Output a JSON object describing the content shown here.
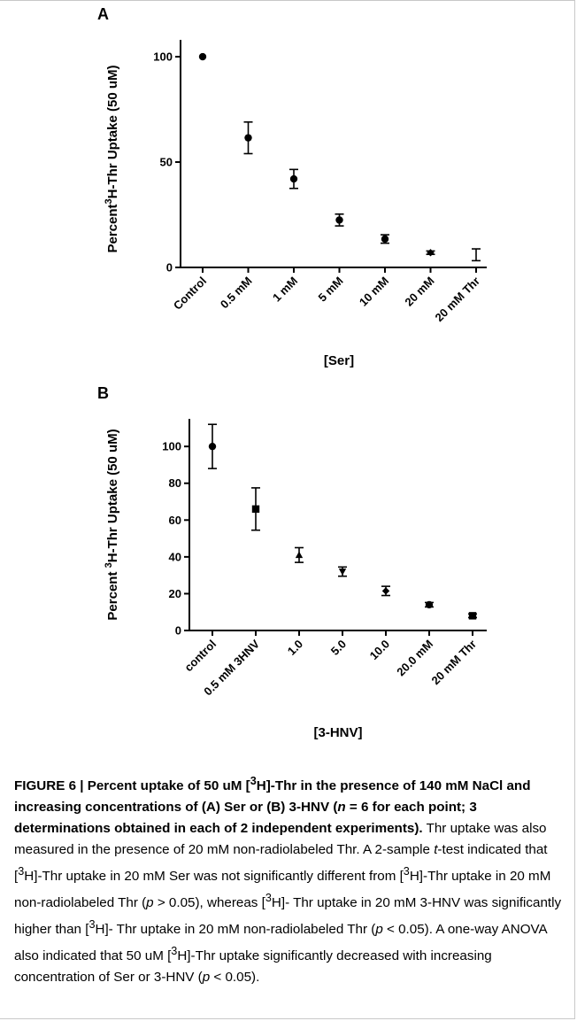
{
  "charts": [
    {
      "panel": "A",
      "type": "scatter",
      "ylabel_prefix": "Percent",
      "ylabel_sup": "3",
      "ylabel_main": "H-Thr Uptake (50 uM)",
      "xlabel": "[Ser]",
      "categories": [
        "Control",
        "0.5 mM",
        "1 mM",
        "5 mM",
        "10 mM",
        "20 mM",
        "20 mM Thr"
      ],
      "values": [
        100,
        61.5,
        42.0,
        22.5,
        13.5,
        7.0,
        6.0
      ],
      "errors": [
        0,
        7.5,
        4.5,
        2.8,
        2.0,
        0.8,
        2.8
      ],
      "markers": [
        "circle",
        "circle",
        "circle",
        "circle",
        "circle",
        "diamond",
        "none"
      ],
      "yticks": [
        0,
        50,
        100
      ],
      "ylim": [
        0,
        108
      ]
    },
    {
      "panel": "B",
      "type": "scatter",
      "ylabel_prefix": "Percent ",
      "ylabel_sup": "3",
      "ylabel_main": "H-Thr Uptake (50 uM)",
      "xlabel": "[3-HNV]",
      "categories": [
        "control",
        "0.5 mM 3HNV",
        "1.0",
        "5.0",
        "10.0",
        "20.0 mM",
        "20 mM Thr"
      ],
      "values": [
        100,
        66.0,
        41.0,
        32.0,
        21.5,
        14.0,
        8.0
      ],
      "errors": [
        12,
        11.5,
        4.0,
        2.5,
        2.5,
        1.2,
        1.0
      ],
      "markers": [
        "circle",
        "square",
        "triangle",
        "triangle-down",
        "diamond",
        "circle",
        "square"
      ],
      "yticks": [
        0,
        20,
        40,
        60,
        80,
        100
      ],
      "ylim": [
        0,
        115
      ]
    }
  ],
  "chart_data": [
    {
      "type": "scatter",
      "categories": [
        "Control",
        "0.5 mM",
        "1 mM",
        "5 mM",
        "10 mM",
        "20 mM",
        "20 mM Thr"
      ],
      "values": [
        100,
        61.5,
        42.0,
        22.5,
        13.5,
        7.0,
        6.0
      ],
      "errors": [
        0,
        7.5,
        4.5,
        2.8,
        2.0,
        0.8,
        2.8
      ],
      "xlabel": "[Ser]",
      "ylabel": "Percent3H-Thr Uptake (50 uM)",
      "ylim": [
        0,
        108
      ],
      "grid": false
    },
    {
      "type": "scatter",
      "categories": [
        "control",
        "0.5 mM 3HNV",
        "1.0",
        "5.0",
        "10.0",
        "20.0 mM",
        "20 mM Thr"
      ],
      "values": [
        100,
        66.0,
        41.0,
        32.0,
        21.5,
        14.0,
        8.0
      ],
      "errors": [
        12,
        11.5,
        4.0,
        2.5,
        2.5,
        1.2,
        1.0
      ],
      "xlabel": "[3-HNV]",
      "ylabel": "Percent 3H-Thr Uptake (50 uM)",
      "ylim": [
        0,
        115
      ],
      "grid": false
    }
  ],
  "caption": {
    "bold_1": "FIGURE 6 | Percent uptake of 50 uM [",
    "bold_sup": "3",
    "bold_2": "H]-Thr in the presence of 140 mM NaCl and increasing concentrations of (A) Ser or (B) 3-HNV (",
    "bold_n": "n",
    "bold_3": " = 6 for each point; 3 determinations obtained in each of 2 independent experiments).",
    "t1": " Thr uptake was also measured in the presence of 20 mM non-radiolabeled Thr. A 2-sample ",
    "t_italic": "t",
    "t2": "-test indicated that [",
    "sup": "3",
    "t3": "H]-Thr uptake in 20 mM Ser was not significantly different from [",
    "t4": "H]-Thr uptake in 20 mM non-radiolabeled Thr (",
    "p": "p",
    "t5": " > 0.05), whereas [",
    "t6": "H]- Thr uptake in 20 mM 3-HNV was significantly higher than [",
    "t7": "H]- Thr uptake in 20 mM non-radiolabeled Thr (",
    "t8": " < 0.05). A one-way ANOVA also indicated that 50 uM [",
    "t9": "H]-Thr uptake significantly decreased with increasing concentration of Ser or 3-HNV (",
    "t10": " < 0.05)."
  }
}
